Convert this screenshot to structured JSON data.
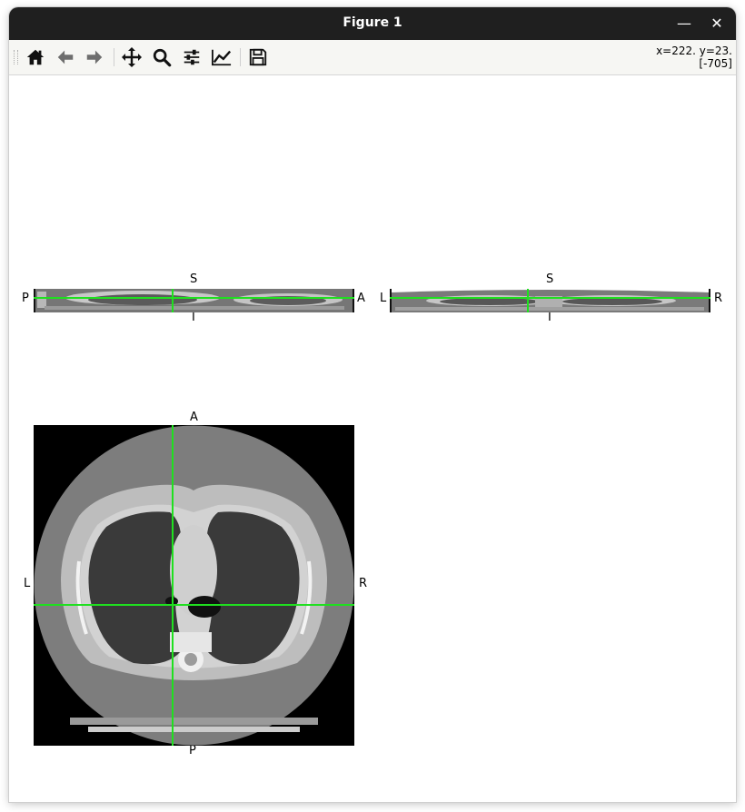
{
  "window": {
    "title": "Figure 1",
    "minimize_symbol": "—",
    "close_symbol": "✕"
  },
  "toolbar": {
    "tools": [
      "home-icon",
      "back-arrow-icon",
      "forward-arrow-icon",
      "pan-move-icon",
      "zoom-magnifier-icon",
      "configure-subplots-icon",
      "edit-axis-curve-icon",
      "save-floppy-icon"
    ],
    "coords_line1": "x=222. y=23.",
    "coords_line2": "[-705]"
  },
  "views": {
    "sagittal": {
      "top": "S",
      "bottom": "I",
      "left": "P",
      "right": "A"
    },
    "coronal": {
      "top": "S",
      "bottom": "I",
      "left": "L",
      "right": "R"
    },
    "axial": {
      "top": "A",
      "bottom": "P",
      "left": "L",
      "right": "R"
    }
  },
  "colors": {
    "crosshair": "#1fe01f",
    "titlebar": "#1f1f1f",
    "toolbar": "#f6f6f3"
  }
}
